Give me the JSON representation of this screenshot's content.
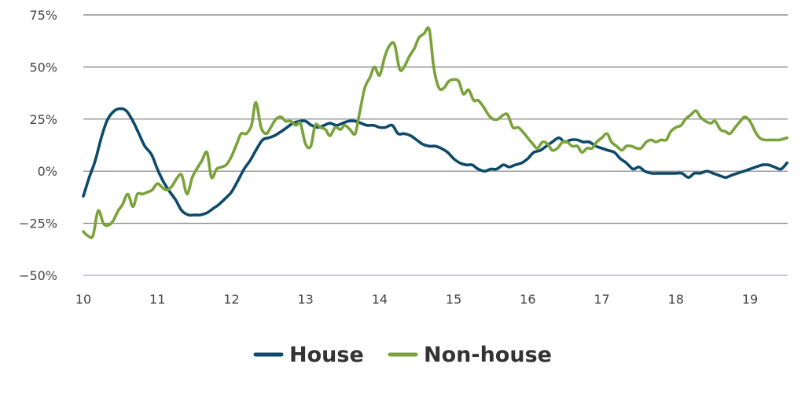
{
  "chart_data": {
    "type": "line",
    "title": "",
    "xlabel": "",
    "ylabel": "",
    "xlim": [
      10,
      19.5
    ],
    "ylim": [
      -50,
      75
    ],
    "x_ticks": [
      10,
      11,
      12,
      13,
      14,
      15,
      16,
      17,
      18,
      19
    ],
    "x_tick_labels": [
      "10",
      "11",
      "12",
      "13",
      "14",
      "15",
      "16",
      "17",
      "18",
      "19"
    ],
    "y_ticks": [
      -50,
      -25,
      0,
      25,
      50,
      75
    ],
    "y_tick_labels": [
      "−50%",
      "−25%",
      "0%",
      "25%",
      "50%",
      "75%"
    ],
    "grid": "horizontal",
    "legend_position": "bottom",
    "series": [
      {
        "name": "House",
        "color": "#0d4a6a",
        "points": [
          [
            10.0,
            -12
          ],
          [
            10.08,
            -3
          ],
          [
            10.16,
            5
          ],
          [
            10.25,
            17
          ],
          [
            10.33,
            25
          ],
          [
            10.42,
            29
          ],
          [
            10.5,
            30
          ],
          [
            10.58,
            29
          ],
          [
            10.67,
            24
          ],
          [
            10.75,
            18
          ],
          [
            10.83,
            12
          ],
          [
            10.92,
            8
          ],
          [
            11.0,
            1
          ],
          [
            11.08,
            -5
          ],
          [
            11.17,
            -10
          ],
          [
            11.25,
            -14
          ],
          [
            11.33,
            -19
          ],
          [
            11.42,
            -21
          ],
          [
            11.5,
            -21
          ],
          [
            11.58,
            -21
          ],
          [
            11.67,
            -20
          ],
          [
            11.75,
            -18
          ],
          [
            11.83,
            -16
          ],
          [
            11.92,
            -13
          ],
          [
            12.0,
            -10
          ],
          [
            12.08,
            -5
          ],
          [
            12.17,
            1
          ],
          [
            12.25,
            5
          ],
          [
            12.33,
            10
          ],
          [
            12.42,
            15
          ],
          [
            12.5,
            16
          ],
          [
            12.58,
            17
          ],
          [
            12.67,
            19
          ],
          [
            12.75,
            21
          ],
          [
            12.83,
            23
          ],
          [
            12.92,
            24
          ],
          [
            13.0,
            24
          ],
          [
            13.08,
            22
          ],
          [
            13.17,
            21
          ],
          [
            13.25,
            22
          ],
          [
            13.33,
            23
          ],
          [
            13.42,
            22
          ],
          [
            13.5,
            23
          ],
          [
            13.58,
            24
          ],
          [
            13.67,
            24
          ],
          [
            13.75,
            23
          ],
          [
            13.83,
            22
          ],
          [
            13.92,
            22
          ],
          [
            14.0,
            21
          ],
          [
            14.08,
            21
          ],
          [
            14.17,
            22
          ],
          [
            14.25,
            18
          ],
          [
            14.33,
            18
          ],
          [
            14.42,
            17
          ],
          [
            14.5,
            15
          ],
          [
            14.58,
            13
          ],
          [
            14.67,
            12
          ],
          [
            14.75,
            12
          ],
          [
            14.83,
            11
          ],
          [
            14.92,
            9
          ],
          [
            15.0,
            6
          ],
          [
            15.08,
            4
          ],
          [
            15.17,
            3
          ],
          [
            15.25,
            3
          ],
          [
            15.33,
            1
          ],
          [
            15.42,
            0
          ],
          [
            15.5,
            1
          ],
          [
            15.58,
            1
          ],
          [
            15.67,
            3
          ],
          [
            15.75,
            2
          ],
          [
            15.83,
            3
          ],
          [
            15.92,
            4
          ],
          [
            16.0,
            6
          ],
          [
            16.08,
            9
          ],
          [
            16.17,
            10
          ],
          [
            16.25,
            12
          ],
          [
            16.33,
            14
          ],
          [
            16.42,
            16
          ],
          [
            16.5,
            14
          ],
          [
            16.58,
            15
          ],
          [
            16.67,
            15
          ],
          [
            16.75,
            14
          ],
          [
            16.83,
            14
          ],
          [
            16.92,
            12
          ],
          [
            17.0,
            11
          ],
          [
            17.08,
            10
          ],
          [
            17.17,
            9
          ],
          [
            17.25,
            6
          ],
          [
            17.33,
            4
          ],
          [
            17.42,
            1
          ],
          [
            17.5,
            2
          ],
          [
            17.58,
            0
          ],
          [
            17.67,
            -1
          ],
          [
            17.75,
            -1
          ],
          [
            17.83,
            -1
          ],
          [
            17.92,
            -1
          ],
          [
            18.0,
            -1
          ],
          [
            18.08,
            -1
          ],
          [
            18.17,
            -3
          ],
          [
            18.25,
            -1
          ],
          [
            18.33,
            -1
          ],
          [
            18.42,
            0
          ],
          [
            18.5,
            -1
          ],
          [
            18.58,
            -2
          ],
          [
            18.67,
            -3
          ],
          [
            18.75,
            -2
          ],
          [
            18.83,
            -1
          ],
          [
            18.92,
            0
          ],
          [
            19.0,
            1
          ],
          [
            19.08,
            2
          ],
          [
            19.17,
            3
          ],
          [
            19.25,
            3
          ],
          [
            19.33,
            2
          ],
          [
            19.42,
            1
          ],
          [
            19.5,
            4
          ]
        ]
      },
      {
        "name": "Non-house",
        "color": "#79a33a",
        "points": [
          [
            10.0,
            -29
          ],
          [
            10.06,
            -31
          ],
          [
            10.13,
            -31
          ],
          [
            10.2,
            -19
          ],
          [
            10.27,
            -25
          ],
          [
            10.33,
            -26
          ],
          [
            10.4,
            -24
          ],
          [
            10.47,
            -19
          ],
          [
            10.53,
            -16
          ],
          [
            10.6,
            -11
          ],
          [
            10.67,
            -17
          ],
          [
            10.73,
            -11
          ],
          [
            10.8,
            -11
          ],
          [
            10.87,
            -10
          ],
          [
            10.93,
            -9
          ],
          [
            11.0,
            -6
          ],
          [
            11.07,
            -8
          ],
          [
            11.13,
            -9
          ],
          [
            11.2,
            -7
          ],
          [
            11.27,
            -3
          ],
          [
            11.33,
            -2
          ],
          [
            11.4,
            -11
          ],
          [
            11.47,
            -3
          ],
          [
            11.53,
            1
          ],
          [
            11.6,
            5
          ],
          [
            11.67,
            9
          ],
          [
            11.73,
            -3
          ],
          [
            11.8,
            1
          ],
          [
            11.87,
            2
          ],
          [
            11.93,
            3
          ],
          [
            12.0,
            7
          ],
          [
            12.07,
            13
          ],
          [
            12.13,
            18
          ],
          [
            12.2,
            18
          ],
          [
            12.27,
            22
          ],
          [
            12.33,
            33
          ],
          [
            12.4,
            21
          ],
          [
            12.47,
            18
          ],
          [
            12.53,
            21
          ],
          [
            12.6,
            25
          ],
          [
            12.67,
            26
          ],
          [
            12.73,
            24
          ],
          [
            12.8,
            24
          ],
          [
            12.87,
            22
          ],
          [
            12.93,
            23
          ],
          [
            13.0,
            13
          ],
          [
            13.07,
            12
          ],
          [
            13.13,
            22
          ],
          [
            13.2,
            21
          ],
          [
            13.27,
            20
          ],
          [
            13.33,
            17
          ],
          [
            13.4,
            21
          ],
          [
            13.47,
            20
          ],
          [
            13.53,
            22
          ],
          [
            13.6,
            20
          ],
          [
            13.67,
            18
          ],
          [
            13.73,
            28
          ],
          [
            13.8,
            40
          ],
          [
            13.87,
            45
          ],
          [
            13.93,
            50
          ],
          [
            14.0,
            46
          ],
          [
            14.07,
            55
          ],
          [
            14.13,
            60
          ],
          [
            14.2,
            61
          ],
          [
            14.27,
            49
          ],
          [
            14.33,
            50
          ],
          [
            14.4,
            55
          ],
          [
            14.47,
            59
          ],
          [
            14.53,
            64
          ],
          [
            14.6,
            66
          ],
          [
            14.67,
            68
          ],
          [
            14.73,
            50
          ],
          [
            14.8,
            40
          ],
          [
            14.87,
            40
          ],
          [
            14.93,
            43
          ],
          [
            15.0,
            44
          ],
          [
            15.07,
            43
          ],
          [
            15.13,
            37
          ],
          [
            15.2,
            39
          ],
          [
            15.27,
            34
          ],
          [
            15.33,
            34
          ],
          [
            15.4,
            31
          ],
          [
            15.47,
            27
          ],
          [
            15.53,
            25
          ],
          [
            15.6,
            25
          ],
          [
            15.67,
            27
          ],
          [
            15.73,
            27
          ],
          [
            15.8,
            21
          ],
          [
            15.87,
            21
          ],
          [
            15.93,
            19
          ],
          [
            16.0,
            16
          ],
          [
            16.07,
            13
          ],
          [
            16.13,
            11
          ],
          [
            16.2,
            14
          ],
          [
            16.27,
            13
          ],
          [
            16.33,
            10
          ],
          [
            16.4,
            11
          ],
          [
            16.47,
            14
          ],
          [
            16.53,
            14
          ],
          [
            16.6,
            12
          ],
          [
            16.67,
            12
          ],
          [
            16.73,
            9
          ],
          [
            16.8,
            11
          ],
          [
            16.87,
            11
          ],
          [
            16.93,
            14
          ],
          [
            17.0,
            16
          ],
          [
            17.07,
            18
          ],
          [
            17.13,
            14
          ],
          [
            17.2,
            12
          ],
          [
            17.27,
            10
          ],
          [
            17.33,
            12
          ],
          [
            17.4,
            12
          ],
          [
            17.47,
            11
          ],
          [
            17.53,
            11
          ],
          [
            17.6,
            14
          ],
          [
            17.67,
            15
          ],
          [
            17.73,
            14
          ],
          [
            17.8,
            15
          ],
          [
            17.87,
            15
          ],
          [
            17.93,
            19
          ],
          [
            18.0,
            21
          ],
          [
            18.07,
            22
          ],
          [
            18.13,
            25
          ],
          [
            18.2,
            27
          ],
          [
            18.27,
            29
          ],
          [
            18.33,
            26
          ],
          [
            18.4,
            24
          ],
          [
            18.47,
            23
          ],
          [
            18.53,
            24
          ],
          [
            18.6,
            20
          ],
          [
            18.67,
            19
          ],
          [
            18.73,
            18
          ],
          [
            18.8,
            21
          ],
          [
            18.87,
            24
          ],
          [
            18.93,
            26
          ],
          [
            19.0,
            24
          ],
          [
            19.07,
            19
          ],
          [
            19.13,
            16
          ],
          [
            19.2,
            15
          ],
          [
            19.27,
            15
          ],
          [
            19.33,
            15
          ],
          [
            19.4,
            15
          ],
          [
            19.5,
            16
          ]
        ]
      }
    ]
  }
}
